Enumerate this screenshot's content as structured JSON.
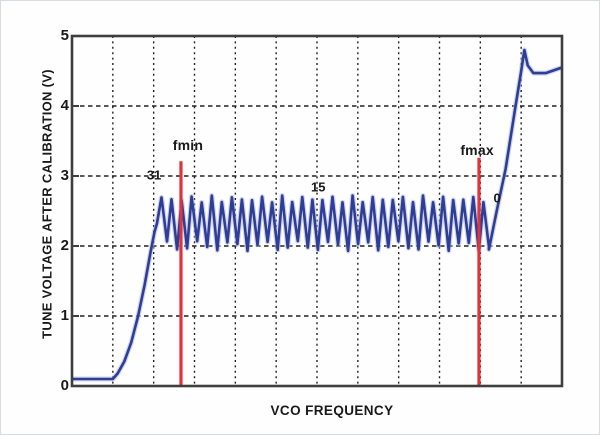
{
  "chart_data": {
    "type": "line",
    "title": "",
    "xlabel": "VCO FREQUENCY",
    "ylabel": "TUNE VOLTAGE AFTER CALIBRATION (V)",
    "ylim": [
      0,
      5
    ],
    "yticks": [
      0,
      1,
      2,
      3,
      4,
      5
    ],
    "x_gridline_units": [
      1,
      2,
      3,
      4,
      5,
      6,
      7,
      8,
      9,
      10,
      11
    ],
    "x_units_total": 12,
    "grid": true,
    "legend": "none",
    "colors": {
      "curve": "#2e3d96",
      "curve_halo": "#a9b2db",
      "marker": "#e1333a",
      "grid": "#222222",
      "frame": "#3e3e3e",
      "text": "#1a1a1a"
    },
    "series": [
      {
        "name": "tune-voltage-after-calibration",
        "flat": {
          "x0": 0,
          "x1": 1.0,
          "y": 0.1
        },
        "ramp": [
          [
            1.0,
            0.1
          ],
          [
            1.12,
            0.18
          ],
          [
            1.28,
            0.35
          ],
          [
            1.45,
            0.62
          ],
          [
            1.62,
            1.0
          ],
          [
            1.78,
            1.45
          ],
          [
            1.92,
            1.9
          ],
          [
            2.02,
            2.2
          ],
          [
            2.08,
            2.32
          ]
        ],
        "sawtooth": {
          "x_start": 2.08,
          "x_end": 10.21,
          "teeth": 33,
          "peak": 2.67,
          "trough": 2.0,
          "peak_jitter": 0.05,
          "trough_jitter": 0.07,
          "peak_phase": 0.45
        },
        "final_rise": [
          [
            10.21,
            1.95
          ],
          [
            10.4,
            2.5
          ],
          [
            10.62,
            3.1
          ],
          [
            10.85,
            3.95
          ],
          [
            11.0,
            4.5
          ],
          [
            11.08,
            4.8
          ],
          [
            11.16,
            4.58
          ],
          [
            11.3,
            4.47
          ],
          [
            11.6,
            4.47
          ],
          [
            12.0,
            4.55
          ]
        ]
      }
    ],
    "annotations": {
      "fmin_line": {
        "x_unit": 2.669,
        "v_top": 3.21,
        "v_bottom": 0
      },
      "fmax_line": {
        "x_unit": 9.967,
        "v_top": 3.26,
        "v_bottom": 0
      },
      "labels": [
        {
          "id": "fmin-label",
          "text": "fmin",
          "x_unit": 2.84,
          "v": 3.44,
          "kind": "fmark"
        },
        {
          "id": "fmax-label",
          "text": "fmax",
          "x_unit": 9.92,
          "v": 3.37,
          "kind": "fmark"
        },
        {
          "id": "band-31-label",
          "text": "31",
          "x_unit": 2.01,
          "v": 3.01,
          "kind": "ann"
        },
        {
          "id": "band-15-label",
          "text": "15",
          "x_unit": 6.03,
          "v": 2.84,
          "kind": "ann"
        },
        {
          "id": "band-0-label",
          "text": "0",
          "x_unit": 10.41,
          "v": 2.69,
          "kind": "ann"
        }
      ]
    }
  }
}
